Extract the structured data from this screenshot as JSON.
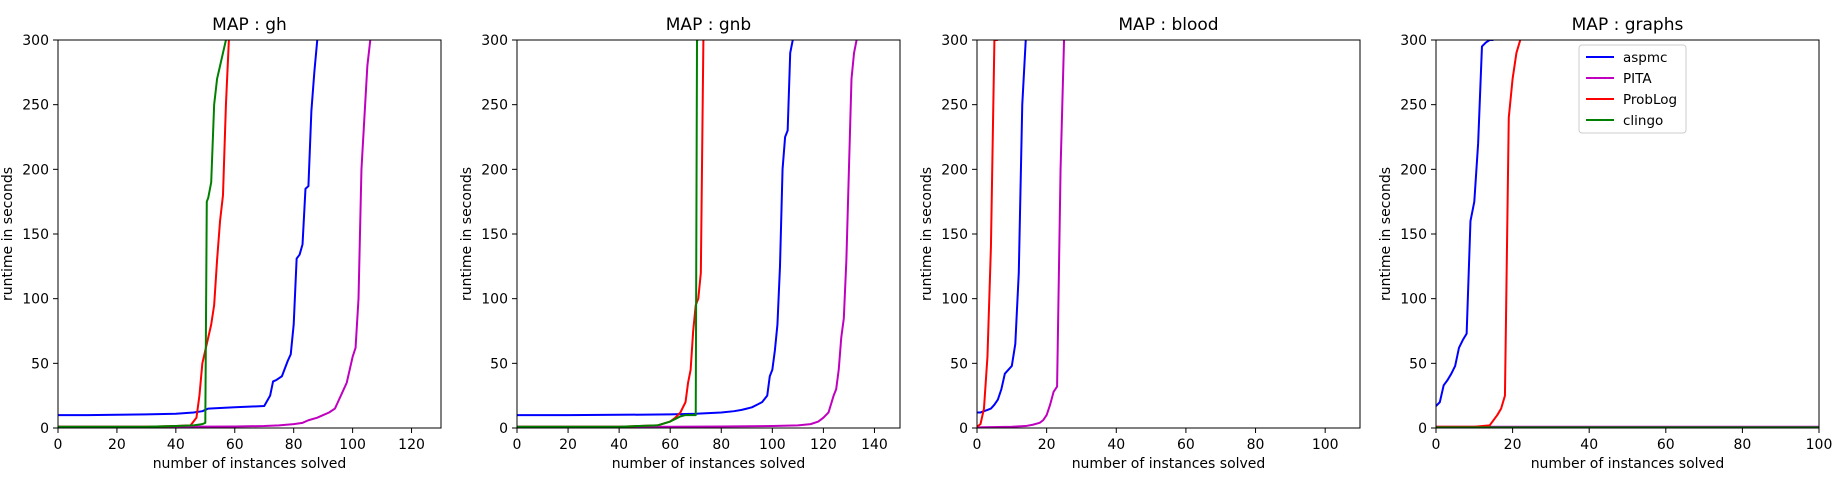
{
  "chart_data": [
    {
      "type": "line",
      "title": "MAP : gh",
      "xlabel": "number of instances solved",
      "ylabel": "runtime in seconds",
      "xlim": [
        0,
        130
      ],
      "ylim": [
        0,
        300
      ],
      "xticks": [
        0,
        20,
        40,
        60,
        80,
        100,
        120
      ],
      "yticks": [
        0,
        50,
        100,
        150,
        200,
        250,
        300
      ],
      "legend": false,
      "series": [
        {
          "name": "aspmc",
          "color": "#0000ff",
          "x": [
            0,
            10,
            20,
            30,
            40,
            46,
            49,
            51,
            55,
            60,
            65,
            70,
            72,
            73,
            74,
            76,
            78,
            79,
            80,
            81,
            82,
            83,
            84,
            85,
            86,
            87,
            88
          ],
          "y": [
            10,
            10,
            10.2,
            10.5,
            11,
            12,
            13,
            15,
            15.5,
            16,
            16.5,
            17,
            25,
            36,
            37,
            40,
            52,
            57,
            80,
            131,
            134,
            142,
            185,
            187,
            245,
            275,
            300
          ]
        },
        {
          "name": "PITA",
          "color": "#bf00bf",
          "x": [
            0,
            40,
            60,
            70,
            75,
            80,
            83,
            85,
            88,
            90,
            92,
            94,
            95,
            96,
            97,
            98,
            99,
            100,
            101,
            102,
            103,
            104,
            105,
            106
          ],
          "y": [
            1,
            1,
            1.2,
            1.5,
            2,
            3,
            4,
            6,
            8,
            10,
            12,
            15,
            20,
            25,
            30,
            35,
            45,
            55,
            62,
            100,
            200,
            240,
            280,
            300
          ]
        },
        {
          "name": "ProbLog",
          "color": "#ff0000",
          "x": [
            0,
            30,
            40,
            45,
            47,
            48,
            49,
            50,
            51,
            52,
            53,
            54,
            55,
            56,
            57,
            58
          ],
          "y": [
            1,
            1,
            1.5,
            2,
            8,
            25,
            50,
            60,
            70,
            80,
            95,
            130,
            160,
            180,
            250,
            300
          ]
        },
        {
          "name": "clingo",
          "color": "#008000",
          "x": [
            0,
            30,
            40,
            46,
            49,
            50,
            50.5,
            51,
            52,
            53,
            54,
            55,
            56,
            57
          ],
          "y": [
            1,
            1,
            1.5,
            2,
            3,
            4,
            175,
            178,
            190,
            250,
            270,
            280,
            290,
            300
          ]
        }
      ]
    },
    {
      "type": "line",
      "title": "MAP : gnb",
      "xlabel": "number of instances solved",
      "ylabel": "runtime in seconds",
      "xlim": [
        0,
        150
      ],
      "ylim": [
        0,
        300
      ],
      "xticks": [
        0,
        20,
        40,
        60,
        80,
        100,
        120,
        140
      ],
      "yticks": [
        0,
        50,
        100,
        150,
        200,
        250,
        300
      ],
      "legend": false,
      "series": [
        {
          "name": "aspmc",
          "color": "#0000ff",
          "x": [
            0,
            20,
            40,
            60,
            70,
            80,
            85,
            88,
            90,
            92,
            94,
            96,
            98,
            99,
            100,
            101,
            102,
            103,
            104,
            105,
            106,
            107,
            108
          ],
          "y": [
            10,
            10,
            10.2,
            10.5,
            11,
            12,
            13,
            14,
            15,
            16,
            18,
            20,
            25,
            40,
            45,
            60,
            80,
            125,
            200,
            225,
            230,
            290,
            300
          ]
        },
        {
          "name": "PITA",
          "color": "#bf00bf",
          "x": [
            0,
            60,
            80,
            100,
            110,
            115,
            118,
            120,
            122,
            124,
            125,
            126,
            127,
            128,
            129,
            130,
            131,
            132,
            133
          ],
          "y": [
            1,
            1,
            1.2,
            1.5,
            2,
            3,
            5,
            8,
            12,
            25,
            30,
            45,
            70,
            85,
            130,
            200,
            270,
            290,
            300
          ]
        },
        {
          "name": "ProbLog",
          "color": "#ff0000",
          "x": [
            0,
            40,
            55,
            60,
            62,
            64,
            66,
            67,
            68,
            69,
            70,
            71,
            72,
            73
          ],
          "y": [
            1,
            1,
            2,
            5,
            8,
            12,
            20,
            35,
            45,
            75,
            95,
            100,
            120,
            300
          ]
        },
        {
          "name": "clingo",
          "color": "#008000",
          "x": [
            0,
            40,
            55,
            60,
            62,
            64,
            66,
            68,
            69,
            70,
            70.5,
            71
          ],
          "y": [
            1,
            1,
            2,
            5,
            7,
            9,
            10,
            10,
            10,
            10,
            300,
            300
          ]
        }
      ]
    },
    {
      "type": "line",
      "title": "MAP : blood",
      "xlabel": "number of instances solved",
      "ylabel": "runtime in seconds",
      "xlim": [
        0,
        110
      ],
      "ylim": [
        0,
        300
      ],
      "xticks": [
        0,
        20,
        40,
        60,
        80,
        100
      ],
      "yticks": [
        0,
        50,
        100,
        150,
        200,
        250,
        300
      ],
      "legend": false,
      "series": [
        {
          "name": "aspmc",
          "color": "#0000ff",
          "x": [
            0,
            1,
            2,
            3,
            4,
            5,
            6,
            7,
            8,
            9,
            10,
            11,
            12,
            13,
            14
          ],
          "y": [
            12,
            12,
            13,
            14,
            15,
            18,
            22,
            30,
            42,
            45,
            48,
            65,
            120,
            250,
            300
          ]
        },
        {
          "name": "PITA",
          "color": "#bf00bf",
          "x": [
            0,
            10,
            14,
            16,
            18,
            19,
            20,
            21,
            22,
            23,
            24,
            25
          ],
          "y": [
            0.5,
            1,
            1.5,
            2.5,
            4,
            6,
            10,
            18,
            28,
            32,
            200,
            300
          ]
        },
        {
          "name": "ProbLog",
          "color": "#ff0000",
          "x": [
            0,
            1,
            2,
            3,
            4,
            5,
            6
          ],
          "y": [
            1,
            3,
            15,
            55,
            140,
            300,
            300
          ]
        }
      ]
    },
    {
      "type": "line",
      "title": "MAP : graphs",
      "xlabel": "number of instances solved",
      "ylabel": "runtime in seconds",
      "xlim": [
        0,
        100
      ],
      "ylim": [
        0,
        300
      ],
      "xticks": [
        0,
        20,
        40,
        60,
        80,
        100
      ],
      "yticks": [
        0,
        50,
        100,
        150,
        200,
        250,
        300
      ],
      "legend": true,
      "legend_loc": "upper center",
      "series": [
        {
          "name": "aspmc",
          "color": "#0000ff",
          "x": [
            0,
            1,
            2,
            3,
            4,
            5,
            6,
            7,
            8,
            9,
            10,
            11,
            12,
            13,
            14,
            15
          ],
          "y": [
            17,
            20,
            33,
            37,
            42,
            48,
            62,
            68,
            73,
            160,
            175,
            220,
            295,
            298,
            300,
            300
          ]
        },
        {
          "name": "PITA",
          "color": "#bf00bf",
          "x": [
            0,
            100
          ],
          "y": [
            1,
            1
          ]
        },
        {
          "name": "ProbLog",
          "color": "#ff0000",
          "x": [
            0,
            10,
            14,
            16,
            17,
            18,
            19,
            20,
            21,
            22
          ],
          "y": [
            1,
            1,
            2,
            10,
            15,
            25,
            240,
            270,
            290,
            300
          ]
        },
        {
          "name": "clingo",
          "color": "#008000",
          "x": [
            0,
            100
          ],
          "y": [
            0.5,
            0.5
          ]
        }
      ]
    }
  ]
}
